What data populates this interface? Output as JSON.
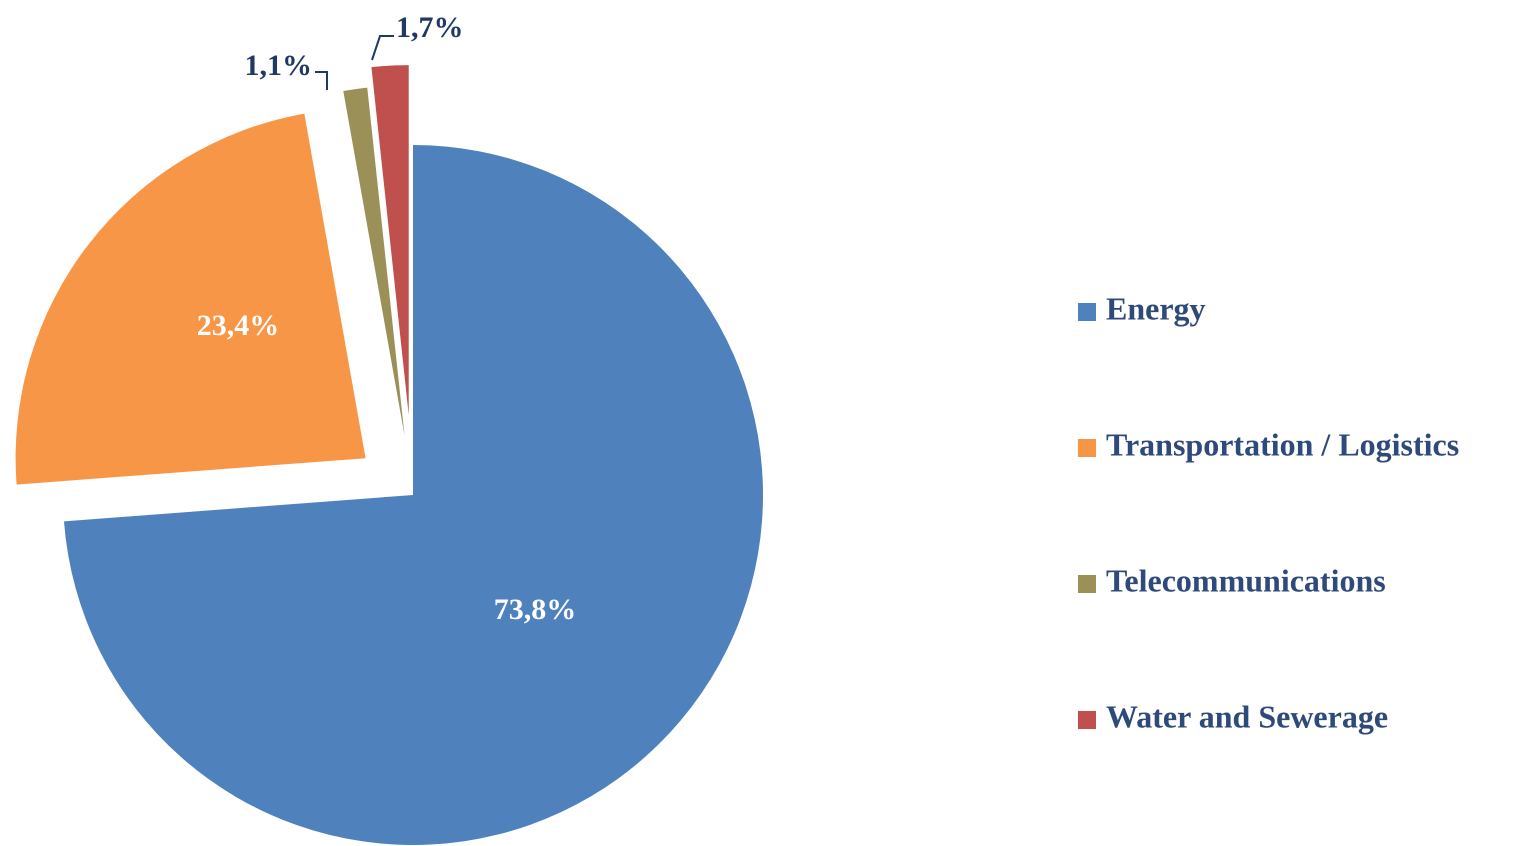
{
  "chart_data": {
    "type": "pie",
    "categories": [
      "Energy",
      "Transportation / Logistics",
      "Telecommunications",
      "Water and Sewerage"
    ],
    "values": [
      73.8,
      23.4,
      1.1,
      1.7
    ],
    "value_labels": [
      "73,8%",
      "23,4%",
      "1,1%",
      "1,7%"
    ],
    "colors": [
      "#4f81bd",
      "#f79646",
      "#9b9058",
      "#c0504d"
    ],
    "legend": "right"
  }
}
